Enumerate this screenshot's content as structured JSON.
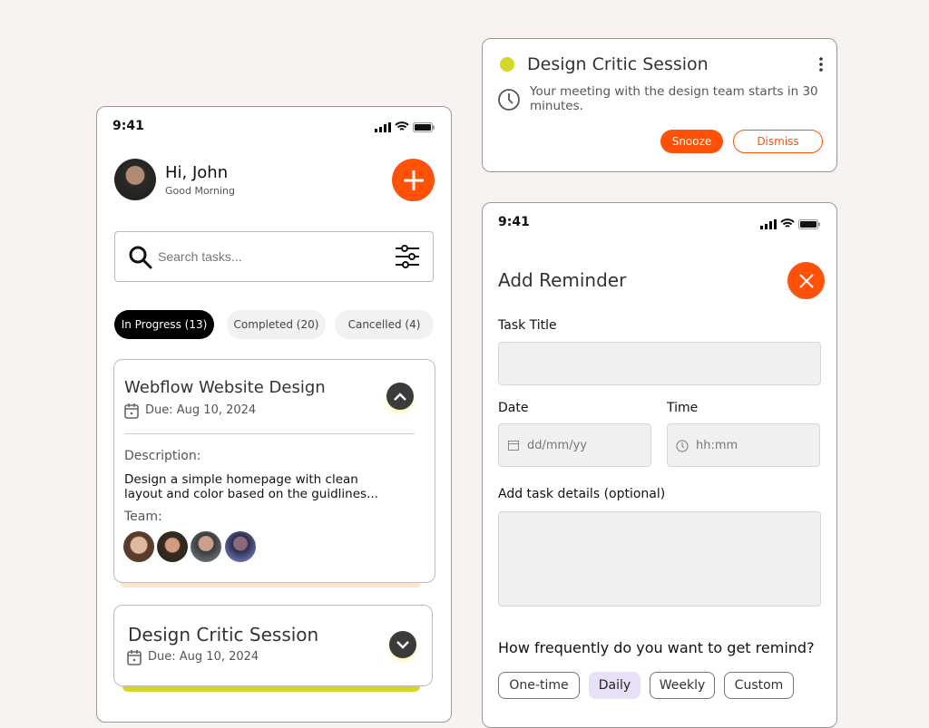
{
  "colors": {
    "accent": "#ff5208",
    "lime": "#d4d62a",
    "peach": "#fde5c8",
    "background": "#f8f2f0"
  },
  "home": {
    "status_time": "9:41",
    "greeting": "Hi, John",
    "subgreeting": "Good Morning",
    "search_placeholder": "Search tasks...",
    "tabs": [
      {
        "label": "In Progress (13)",
        "active": true
      },
      {
        "label": "Completed (20)",
        "active": false
      },
      {
        "label": "Cancelled (4)",
        "active": false
      }
    ],
    "tasks": [
      {
        "title": "Webflow Website Design",
        "due_label": "Due:",
        "due": "Aug 10, 2024",
        "expanded": true,
        "description_label": "Description:",
        "description": "Design a simple homepage with clean layout and color based on the guidlines...",
        "team_label": "Team:"
      },
      {
        "title": "Design Critic Session",
        "due_label": "Due:",
        "due": "Aug 10, 2024",
        "expanded": false
      }
    ]
  },
  "notification": {
    "title": "Design Critic Session",
    "message": "Your meeting with the design team starts in 30 minutes.",
    "snooze": "Snooze",
    "dismiss": "Dismiss"
  },
  "reminder": {
    "status_time": "9:41",
    "title": "Add Reminder",
    "task_title_label": "Task Title",
    "date_label": "Date",
    "date_placeholder": "dd/mm/yy",
    "time_label": "Time",
    "time_placeholder": "hh:mm",
    "details_label": "Add task details (optional)",
    "frequency_question": "How frequently do you want to get remind?",
    "frequency_options": [
      {
        "label": "One-time",
        "selected": false
      },
      {
        "label": "Daily",
        "selected": true
      },
      {
        "label": "Weekly",
        "selected": false
      },
      {
        "label": "Custom",
        "selected": false
      }
    ]
  }
}
